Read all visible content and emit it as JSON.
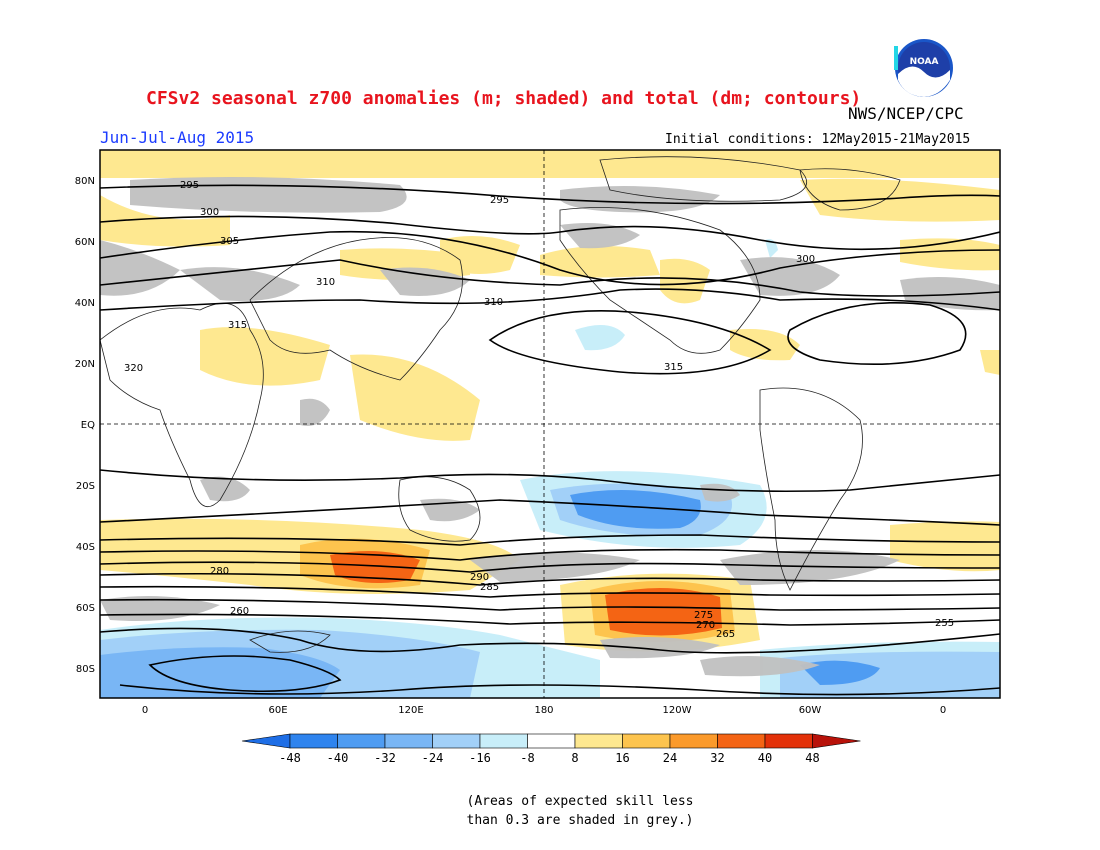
{
  "header": {
    "title": "CFSv2 seasonal z700 anomalies (m; shaded) and total (dm; contours)",
    "agency": "NWS/NCEP/CPC",
    "season": "Jun-Jul-Aug 2015",
    "initial_conditions": "Initial conditions: 12May2015-21May2015"
  },
  "logo": {
    "text": "NOAA"
  },
  "axes": {
    "lat_ticks": [
      "80N",
      "60N",
      "40N",
      "20N",
      "EQ",
      "20S",
      "40S",
      "60S",
      "80S"
    ],
    "lon_ticks": [
      "0",
      "60E",
      "120E",
      "180",
      "120W",
      "60W",
      "0"
    ]
  },
  "colorbar": {
    "labels": [
      "-48",
      "-40",
      "-32",
      "-24",
      "-16",
      "-8",
      "8",
      "16",
      "24",
      "32",
      "40",
      "48"
    ],
    "colors": [
      "#1e6ee6",
      "#2f84ee",
      "#4f9cf2",
      "#79b6f5",
      "#a2d0f8",
      "#c8eef9",
      "#ffffff",
      "#fee890",
      "#fdc44e",
      "#fb9a2b",
      "#f46414",
      "#e33109",
      "#b8120a"
    ]
  },
  "footnote": {
    "line1": "(Areas of expected skill less",
    "line2": "than 0.3 are shaded in grey.)"
  },
  "contour_labels": [
    "295",
    "300",
    "305",
    "310",
    "315",
    "320",
    "315",
    "310",
    "300",
    "295",
    "290",
    "285",
    "280",
    "275",
    "270",
    "265",
    "260",
    "255"
  ]
}
